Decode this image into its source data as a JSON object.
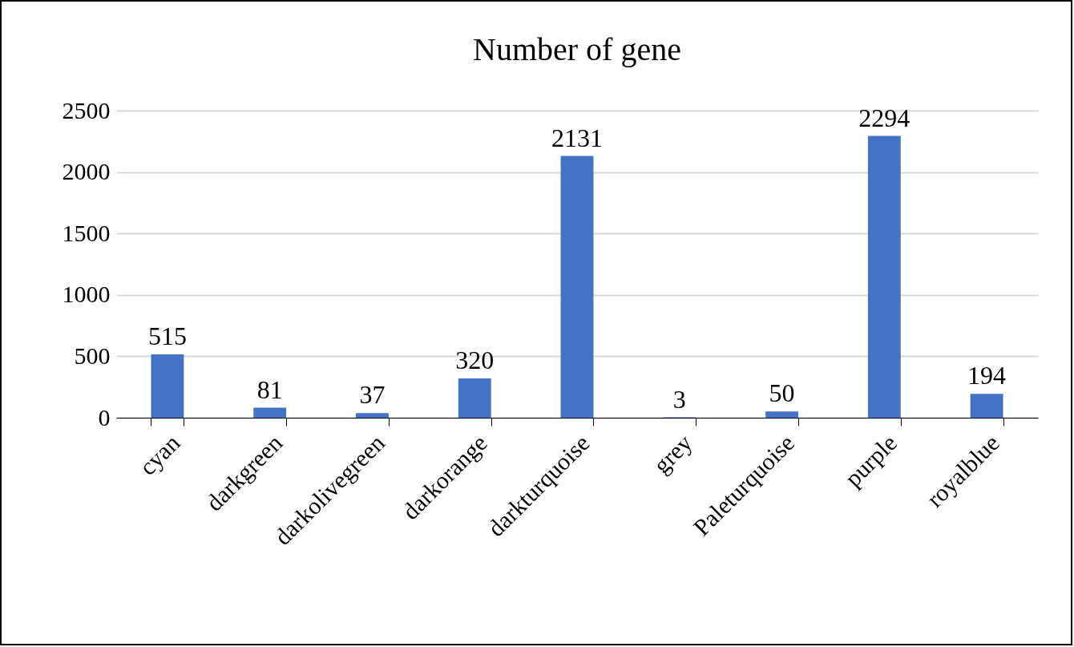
{
  "chart_data": {
    "type": "bar",
    "title": "Number of gene",
    "categories": [
      "cyan",
      "darkgreen",
      "darkolivegreen",
      "darkorange",
      "darkturquoise",
      "grey",
      "Paleturquoise",
      "purple",
      "royalblue"
    ],
    "values": [
      515,
      81,
      37,
      320,
      2131,
      3,
      50,
      2294,
      194
    ],
    "color": "#4472c4",
    "ylim": [
      0,
      2500
    ],
    "yticks": [
      0,
      500,
      1000,
      1500,
      2000,
      2500
    ],
    "grid": "y",
    "data_labels": true
  }
}
